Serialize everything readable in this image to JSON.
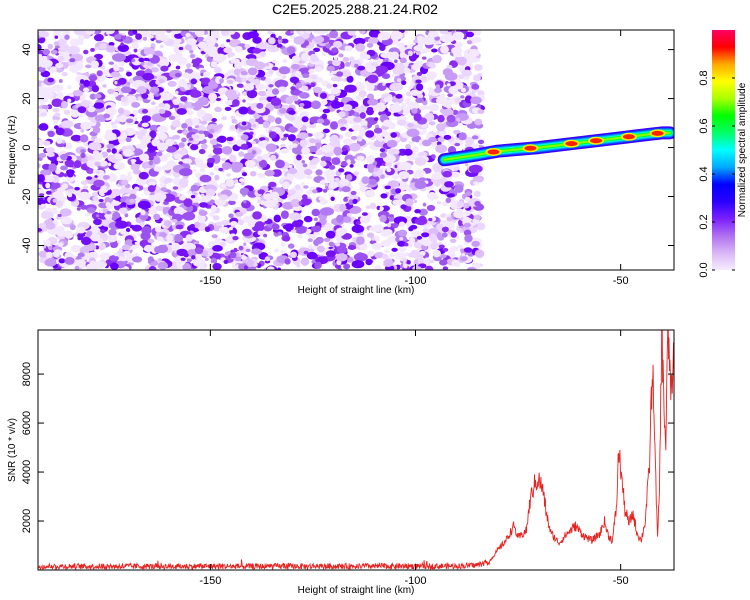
{
  "title": "C2E5.2025.288.21.24.R02",
  "chart_data": [
    {
      "type": "heatmap",
      "xlabel": "Height of straight line (km)",
      "ylabel": "Frequency (Hz)",
      "xlim": [
        -192,
        -37
      ],
      "ylim": [
        -50,
        48
      ],
      "xticks": [
        -150,
        -100,
        -50
      ],
      "yticks": [
        -40,
        -20,
        0,
        20,
        40
      ],
      "noise_region_x": [
        -192,
        -84
      ],
      "trace": {
        "points": [
          [
            -93,
            -5
          ],
          [
            -85,
            -3
          ],
          [
            -80,
            -1.5
          ],
          [
            -70,
            0
          ],
          [
            -60,
            2
          ],
          [
            -50,
            4
          ],
          [
            -45,
            5
          ],
          [
            -40,
            6
          ],
          [
            -38,
            6
          ]
        ],
        "hotspots_x": [
          -81,
          -72,
          -62,
          -56,
          -48,
          -41
        ]
      },
      "colorbar": {
        "label": "Normalized spectral amplitude",
        "ticks": [
          0.0,
          0.2,
          0.4,
          0.6,
          0.8
        ],
        "range": [
          0,
          1
        ],
        "colormap": [
          "#f6ecff",
          "#d9b6f5",
          "#b070f0",
          "#7a1fff",
          "#2a00ff",
          "#0000ff",
          "#00aaff",
          "#00ffff",
          "#00ff66",
          "#00ff00",
          "#aaff00",
          "#ffff00",
          "#ffaa00",
          "#ff0000",
          "#ff0066"
        ]
      }
    },
    {
      "type": "line",
      "xlabel": "Height of straight line (km)",
      "ylabel": "SNR (10 * v/v)",
      "xlim": [
        -192,
        -37
      ],
      "ylim": [
        0,
        9800
      ],
      "xticks": [
        -150,
        -100,
        -50
      ],
      "yticks": [
        2000,
        4000,
        6000,
        8000
      ],
      "color": "#e8211f",
      "envelope": [
        [
          -192,
          150
        ],
        [
          -170,
          150
        ],
        [
          -130,
          150
        ],
        [
          -90,
          160
        ],
        [
          -85,
          200
        ],
        [
          -82,
          350
        ],
        [
          -80,
          800
        ],
        [
          -78,
          1200
        ],
        [
          -76,
          1800
        ],
        [
          -75,
          1300
        ],
        [
          -73,
          1600
        ],
        [
          -72,
          2900
        ],
        [
          -71,
          3500
        ],
        [
          -70,
          3700
        ],
        [
          -69,
          3300
        ],
        [
          -68,
          2200
        ],
        [
          -67,
          1500
        ],
        [
          -66,
          1300
        ],
        [
          -65,
          1100
        ],
        [
          -63,
          1500
        ],
        [
          -61,
          1800
        ],
        [
          -59,
          1400
        ],
        [
          -57,
          1200
        ],
        [
          -55,
          1500
        ],
        [
          -54,
          2000
        ],
        [
          -53,
          1400
        ],
        [
          -52,
          1200
        ],
        [
          -51,
          2600
        ],
        [
          -50.5,
          4900
        ],
        [
          -50,
          4200
        ],
        [
          -49,
          2500
        ],
        [
          -48,
          1900
        ],
        [
          -47,
          2300
        ],
        [
          -46,
          1500
        ],
        [
          -45,
          1200
        ],
        [
          -44,
          2000
        ],
        [
          -43,
          4200
        ],
        [
          -42.5,
          7200
        ],
        [
          -42,
          7600
        ],
        [
          -41.5,
          4000
        ],
        [
          -41,
          1200
        ],
        [
          -40.5,
          3600
        ],
        [
          -40,
          9800
        ],
        [
          -39.5,
          7000
        ],
        [
          -39,
          5000
        ],
        [
          -38.5,
          9800
        ],
        [
          -38,
          8200
        ],
        [
          -37.5,
          7000
        ],
        [
          -37,
          9000
        ]
      ]
    }
  ]
}
